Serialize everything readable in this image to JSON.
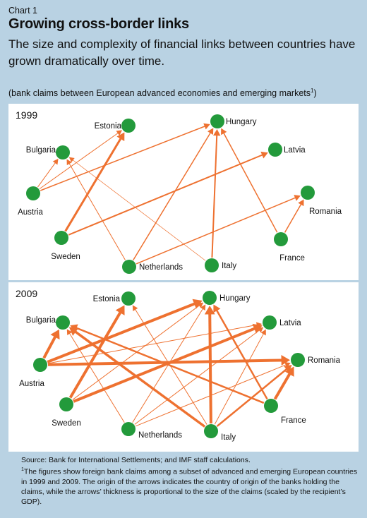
{
  "header": {
    "chart_label": "Chart 1",
    "title": "Growing cross-border links",
    "subtitle": "The size and complexity of financial links between countries have grown dramatically over time.",
    "note": "(bank claims between European advanced economies and emerging markets",
    "note_marker": "1",
    "note_close": ")"
  },
  "colors": {
    "node": "#239a3b",
    "arrow": "#ee7130",
    "background": "#b9d2e3",
    "panel": "#ffffff"
  },
  "countries": [
    "Estonia",
    "Hungary",
    "Bulgaria",
    "Latvia",
    "Austria",
    "Romania",
    "Sweden",
    "France",
    "Netherlands",
    "Italy"
  ],
  "panels": [
    {
      "year": "1999",
      "edges": [
        {
          "from": "Sweden",
          "to": "Estonia",
          "weight": 3
        },
        {
          "from": "Sweden",
          "to": "Latvia",
          "weight": 2
        },
        {
          "from": "Austria",
          "to": "Estonia",
          "weight": 1
        },
        {
          "from": "Austria",
          "to": "Hungary",
          "weight": 1.5
        },
        {
          "from": "Austria",
          "to": "Bulgaria",
          "weight": 1
        },
        {
          "from": "Netherlands",
          "to": "Bulgaria",
          "weight": 1
        },
        {
          "from": "Netherlands",
          "to": "Hungary",
          "weight": 1.5
        },
        {
          "from": "Netherlands",
          "to": "Romania",
          "weight": 1.5
        },
        {
          "from": "Italy",
          "to": "Bulgaria",
          "weight": 0.7
        },
        {
          "from": "Italy",
          "to": "Hungary",
          "weight": 2
        },
        {
          "from": "France",
          "to": "Hungary",
          "weight": 1.5
        },
        {
          "from": "France",
          "to": "Romania",
          "weight": 1.5
        }
      ]
    },
    {
      "year": "2009",
      "edges": [
        {
          "from": "Austria",
          "to": "Bulgaria",
          "weight": 4
        },
        {
          "from": "Austria",
          "to": "Hungary",
          "weight": 4
        },
        {
          "from": "Austria",
          "to": "Latvia",
          "weight": 1
        },
        {
          "from": "Austria",
          "to": "Romania",
          "weight": 4
        },
        {
          "from": "Sweden",
          "to": "Estonia",
          "weight": 4
        },
        {
          "from": "Sweden",
          "to": "Latvia",
          "weight": 4
        },
        {
          "from": "Sweden",
          "to": "Hungary",
          "weight": 1
        },
        {
          "from": "Italy",
          "to": "Bulgaria",
          "weight": 3.5
        },
        {
          "from": "Italy",
          "to": "Hungary",
          "weight": 4
        },
        {
          "from": "Italy",
          "to": "Romania",
          "weight": 2.5
        },
        {
          "from": "Italy",
          "to": "Estonia",
          "weight": 1
        },
        {
          "from": "Italy",
          "to": "Latvia",
          "weight": 1
        },
        {
          "from": "France",
          "to": "Bulgaria",
          "weight": 2.5
        },
        {
          "from": "France",
          "to": "Hungary",
          "weight": 2.5
        },
        {
          "from": "France",
          "to": "Romania",
          "weight": 4
        },
        {
          "from": "Netherlands",
          "to": "Hungary",
          "weight": 1
        },
        {
          "from": "Netherlands",
          "to": "Romania",
          "weight": 1
        },
        {
          "from": "Netherlands",
          "to": "Latvia",
          "weight": 1
        },
        {
          "from": "Netherlands",
          "to": "Bulgaria",
          "weight": 1
        }
      ]
    }
  ],
  "footer": {
    "source": "Source: Bank for International Settlements; and IMF staff calculations.",
    "footnote_marker": "1",
    "footnote": "The figures show foreign bank claims among a subset of advanced and emerging European countries in 1999 and 2009. The origin of the arrows indicates the country of origin of the banks holding the claims, while the arrows’ thickness is proportional to the size of the claims (scaled by the recipient’s GDP)."
  }
}
